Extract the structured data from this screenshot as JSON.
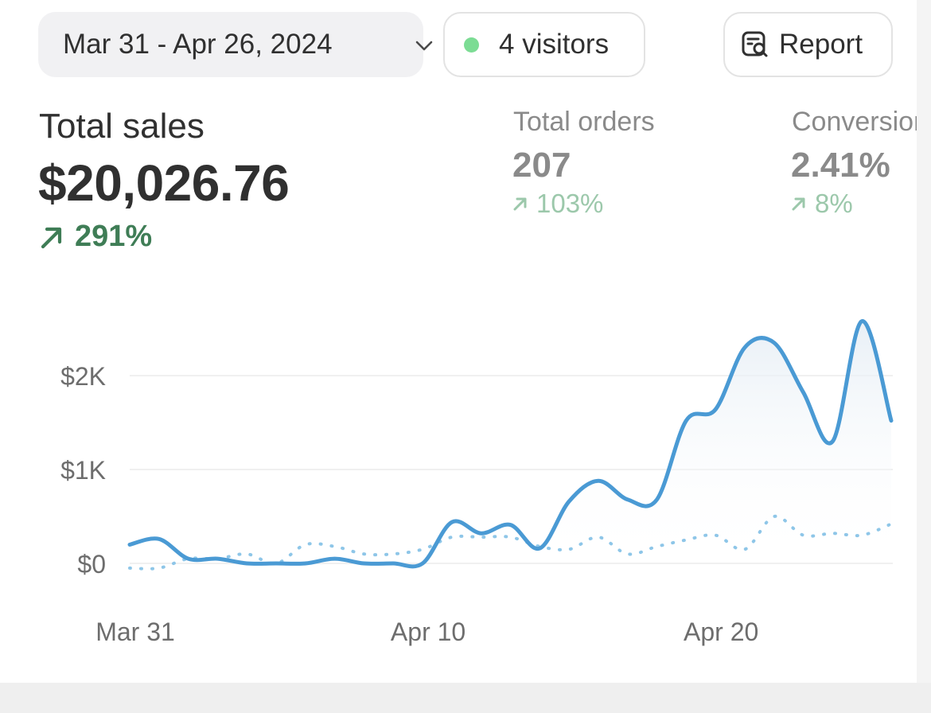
{
  "header": {
    "date_range": "Mar 31 - Apr 26, 2024",
    "visitors": "4 visitors",
    "report_label": "Report"
  },
  "metrics": {
    "total_sales": {
      "label": "Total sales",
      "value": "$20,026.76",
      "change": "291%"
    },
    "total_orders": {
      "label": "Total orders",
      "value": "207",
      "change": "103%"
    },
    "conversion": {
      "label": "Conversion",
      "value": "2.41%",
      "change": "8%"
    }
  },
  "colors": {
    "accent_line": "#4a9ad4",
    "comparison_line": "#8ec6e8",
    "positive": "#3f7d56",
    "positive_muted": "#9cc8ab",
    "live_dot": "#7cdc94"
  },
  "chart_data": {
    "type": "line",
    "x": [
      "Mar 31",
      "Apr 1",
      "Apr 2",
      "Apr 3",
      "Apr 4",
      "Apr 5",
      "Apr 6",
      "Apr 7",
      "Apr 8",
      "Apr 9",
      "Apr 10",
      "Apr 11",
      "Apr 12",
      "Apr 13",
      "Apr 14",
      "Apr 15",
      "Apr 16",
      "Apr 17",
      "Apr 18",
      "Apr 19",
      "Apr 20",
      "Apr 21",
      "Apr 22",
      "Apr 23",
      "Apr 24",
      "Apr 25",
      "Apr 26"
    ],
    "xticks": [
      "Mar 31",
      "Apr 10",
      "Apr 20"
    ],
    "yticks": [
      "$0",
      "$1K",
      "$2K"
    ],
    "ylim": [
      0,
      2600
    ],
    "grid": true,
    "series": [
      {
        "values": [
          200,
          260,
          50,
          50,
          0,
          0,
          0,
          50,
          0,
          0,
          0,
          440,
          320,
          410,
          160,
          660,
          880,
          680,
          680,
          1520,
          1640,
          2300,
          2350,
          1820,
          1300,
          2580,
          1520
        ]
      },
      {
        "values": [
          -50,
          -50,
          50,
          50,
          100,
          0,
          200,
          180,
          100,
          100,
          150,
          280,
          280,
          280,
          180,
          150,
          280,
          100,
          180,
          250,
          300,
          150,
          500,
          300,
          320,
          300,
          420
        ]
      }
    ]
  }
}
